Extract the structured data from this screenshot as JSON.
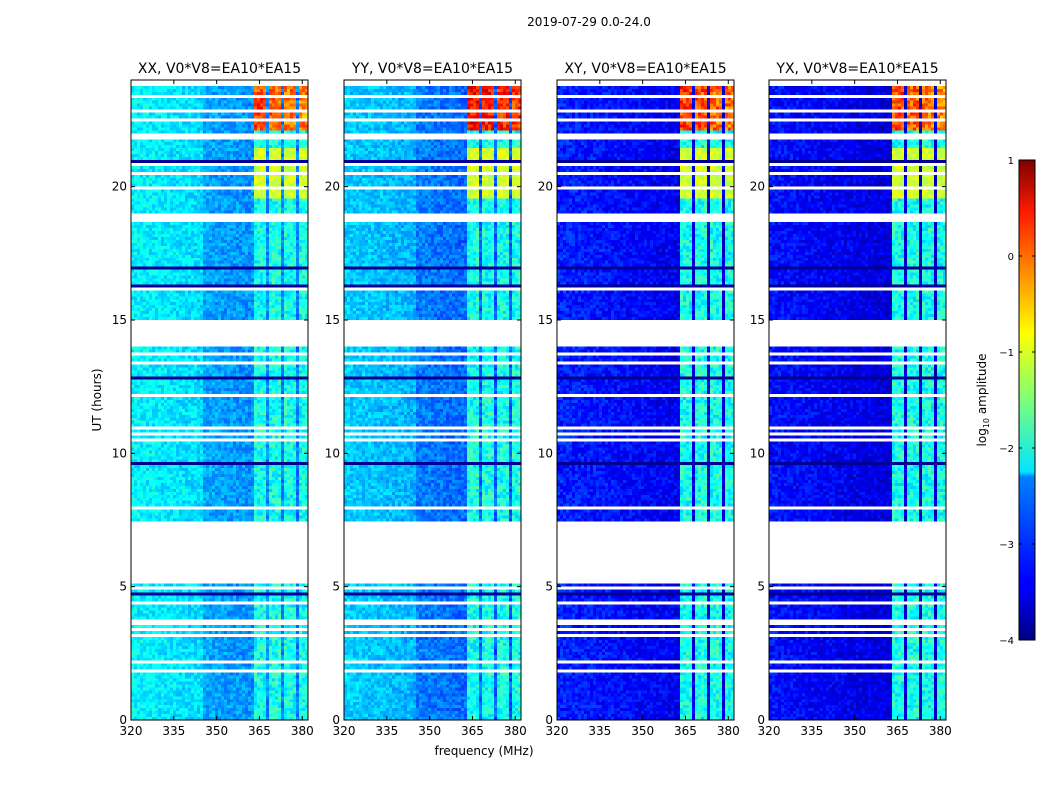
{
  "figure": {
    "suptitle": "2019-07-29 0.0-24.0",
    "xlabel": "frequency (MHz)",
    "ylabel": "UT (hours)",
    "colormap": "jet"
  },
  "chart_data": {
    "type": "heatmap",
    "title": "2019-07-29 0.0-24.0",
    "xlabel": "frequency (MHz)",
    "ylabel": "UT (hours)",
    "xlim": [
      320,
      382
    ],
    "ylim": [
      0,
      24
    ],
    "xticks": [
      320,
      335,
      350,
      365,
      380
    ],
    "yticks": [
      0,
      5,
      10,
      15,
      20
    ],
    "panels": [
      {
        "title": "XX, V0*V8=EA10*EA15",
        "background": -2.4,
        "rfi_peak": 0.2
      },
      {
        "title": "YY, V0*V8=EA10*EA15",
        "background": -2.6,
        "rfi_peak": 0.6
      },
      {
        "title": "XY, V0*V8=EA10*EA15",
        "background": -3.2,
        "rfi_peak": 0.3
      },
      {
        "title": "YX, V0*V8=EA10*EA15",
        "background": -3.3,
        "rfi_peak": 0.2
      }
    ],
    "rfi_bands_mhz": [
      [
        363.5,
        367.5
      ],
      [
        368.5,
        372.5
      ],
      [
        373.5,
        377.5
      ],
      [
        378.5,
        382
      ]
    ],
    "flagged_time_ranges": [
      [
        5.1,
        7.45
      ],
      [
        14.0,
        14.95
      ],
      [
        18.65,
        18.95
      ],
      [
        21.8,
        22.05
      ]
    ],
    "colorbar": {
      "label_prefix": "log",
      "label_sub": "10",
      "label_suffix": " amplitude",
      "range": [
        -4,
        1
      ],
      "ticks": [
        {
          "v": 1,
          "t": "1"
        },
        {
          "v": 0,
          "t": "0"
        },
        {
          "v": -1,
          "t": "−1"
        },
        {
          "v": -2,
          "t": "−2"
        },
        {
          "v": -3,
          "t": "−3"
        },
        {
          "v": -4,
          "t": "−4"
        }
      ]
    }
  }
}
